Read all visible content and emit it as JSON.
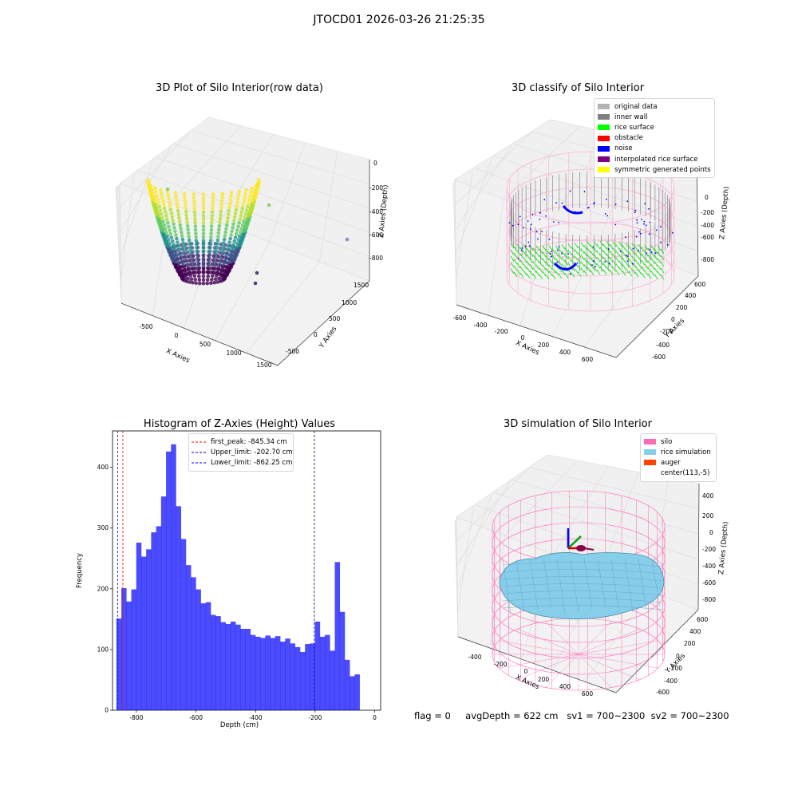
{
  "suptitle": "JTOCD01 2026-03-26 21:25:35",
  "footer": {
    "flag": "flag = 0",
    "avg_depth": "avgDepth = 622 cm",
    "sv1": "sv1 = 700~2300",
    "sv2": "sv2 = 700~2300"
  },
  "panels": {
    "raw": {
      "title": "3D Plot of Silo Interior(row data)",
      "xlabel": "X Axies",
      "ylabel": "Y Axies",
      "zlabel": "Z Axies (Depth)",
      "xticks": [
        "-500",
        "0",
        "500",
        "1000",
        "1500"
      ],
      "yticks": [
        "-500",
        "0",
        "500",
        "1000",
        "1500"
      ],
      "zticks": [
        "0",
        "-200",
        "-400",
        "-600",
        "-800"
      ]
    },
    "classify": {
      "title": "3D classify of Silo Interior",
      "xlabel": "X Axies",
      "ylabel": "Y Axies",
      "zlabel": "Z Axies (Depth)",
      "xticks": [
        "-600",
        "-400",
        "-200",
        "0",
        "200",
        "400",
        "600"
      ],
      "yticks": [
        "-600",
        "-400",
        "-200",
        "0",
        "200",
        "400",
        "600"
      ],
      "zticks": [
        "200",
        "0",
        "-200",
        "-400",
        "-600",
        "-800"
      ],
      "legend": [
        {
          "label": "original data",
          "color": "#b3b3b3"
        },
        {
          "label": "inner wall",
          "color": "#808080"
        },
        {
          "label": "rice surface",
          "color": "#00ff00"
        },
        {
          "label": "obstacle",
          "color": "#ff0000"
        },
        {
          "label": "noise",
          "color": "#0000ff"
        },
        {
          "label": "interpolated rice surface",
          "color": "#800080"
        },
        {
          "label": "symmetric generated points",
          "color": "#ffff00"
        }
      ]
    },
    "simulation": {
      "title": "3D simulation of Silo Interior",
      "xlabel": "X Axies",
      "ylabel": "Y Axies",
      "zlabel": "Z Axies (Depth)",
      "xticks": [
        "-400",
        "-200",
        "0",
        "200",
        "400",
        "600"
      ],
      "yticks": [
        "-600",
        "-400",
        "-200",
        "0",
        "200",
        "400",
        "600"
      ],
      "zticks": [
        "400",
        "200",
        "0",
        "-200",
        "-400",
        "-600",
        "-800"
      ],
      "legend": [
        {
          "label": "silo",
          "color": "#ff69b4"
        },
        {
          "label": "rice simulation",
          "color": "#87ceeb"
        },
        {
          "label": "auger",
          "color": "#ff4500"
        },
        {
          "label": "center(113,-5)",
          "color": ""
        }
      ]
    }
  },
  "chart_data": [
    {
      "type": "histogram",
      "title": "Histogram of Z-Axies (Height) Values",
      "xlabel": "Depth (cm)",
      "ylabel": "Frequency",
      "xlim": [
        -880,
        20
      ],
      "ylim": [
        0,
        460
      ],
      "xticks": [
        "-800",
        "-600",
        "-400",
        "-200",
        "0"
      ],
      "yticks": [
        "0",
        "100",
        "200",
        "300",
        "400"
      ],
      "bar_color": "#0000ff",
      "bin_width": 16.66,
      "bin_start": -867,
      "values": [
        151,
        201,
        179,
        199,
        276,
        253,
        265,
        293,
        303,
        352,
        426,
        438,
        336,
        282,
        239,
        219,
        199,
        176,
        178,
        157,
        155,
        145,
        142,
        146,
        141,
        134,
        134,
        124,
        121,
        119,
        123,
        119,
        122,
        113,
        118,
        110,
        104,
        96,
        109,
        110,
        146,
        121,
        124,
        98,
        244,
        162,
        83,
        56,
        59
      ],
      "reference_lines": [
        {
          "label": "first_peak: -845.34 cm",
          "value": -845.34,
          "color": "#ff0000"
        },
        {
          "label": "Upper_limit: -202.70 cm",
          "value": -202.7,
          "color": "#00008b"
        },
        {
          "label": "Lower_limit: -862.25 cm",
          "value": -862.25,
          "color": "#0000ff"
        }
      ],
      "legend_position": "top-center"
    }
  ]
}
